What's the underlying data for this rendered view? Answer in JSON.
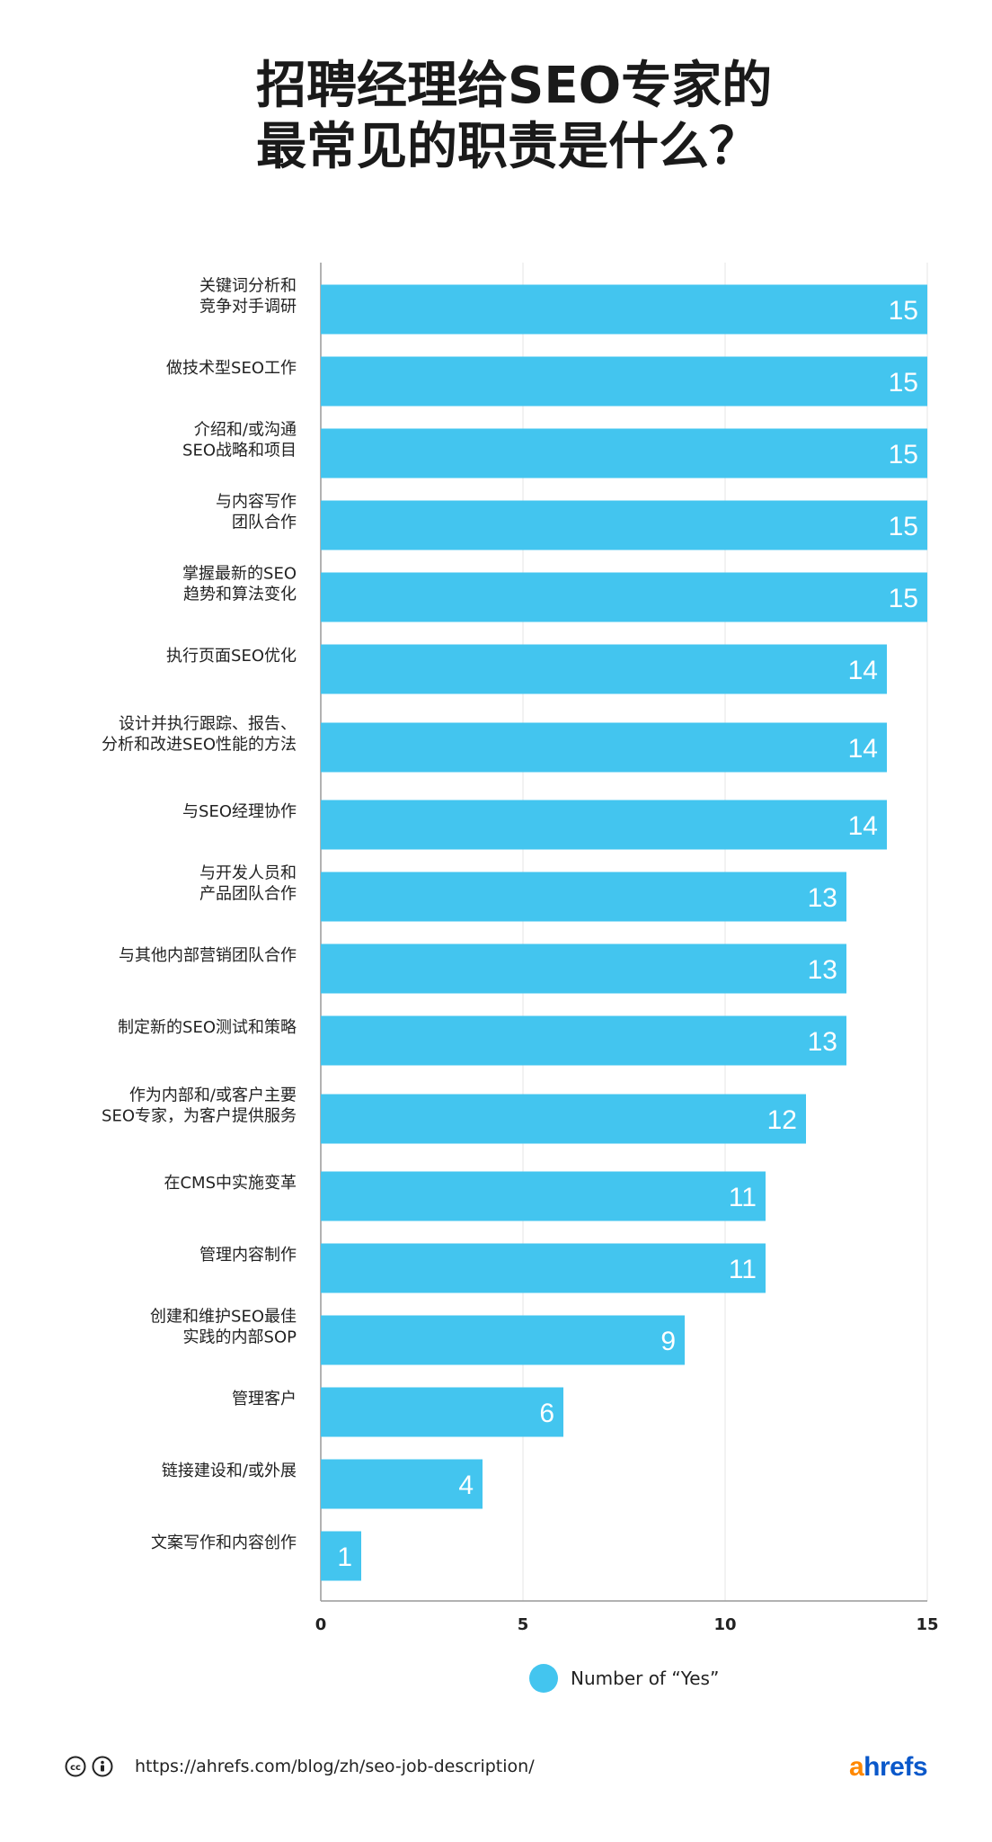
{
  "title": {
    "line1": "招聘经理给SEO专家的",
    "line2": "最常见的职责是什么？"
  },
  "colors": {
    "bar": "#43c5ef",
    "value_text": "#ffffff",
    "grid": "#e6e6e6",
    "axis": "#999999",
    "label": "#222222"
  },
  "chart_data": {
    "type": "bar",
    "orientation": "horizontal",
    "categories": [
      [
        "关键词分析和",
        "竞争对手调研"
      ],
      [
        "做技术型SEO工作"
      ],
      [
        "介绍和/或沟通",
        "SEO战略和项目"
      ],
      [
        "与内容写作",
        "团队合作"
      ],
      [
        "掌握最新的SEO",
        "趋势和算法变化"
      ],
      [
        "执行页面SEO优化"
      ],
      [
        "设计并执行跟踪、报告、",
        "分析和改进SEO性能的方法"
      ],
      [
        "与SEO经理协作"
      ],
      [
        "与开发人员和",
        "产品团队合作"
      ],
      [
        "与其他内部营销团队合作"
      ],
      [
        "制定新的SEO测试和策略"
      ],
      [
        "作为内部和/或客户主要",
        "SEO专家，为客户提供服务"
      ],
      [
        "在CMS中实施变革"
      ],
      [
        "管理内容制作"
      ],
      [
        "创建和维护SEO最佳",
        "实践的内部SOP"
      ],
      [
        "管理客户"
      ],
      [
        "链接建设和/或外展"
      ],
      [
        "文案写作和内容创作"
      ]
    ],
    "series": [
      {
        "name": "Number of “Yes”",
        "values": [
          15,
          15,
          15,
          15,
          15,
          14,
          14,
          14,
          13,
          13,
          13,
          12,
          11,
          11,
          9,
          6,
          4,
          1
        ]
      }
    ],
    "xlim": [
      0,
      15
    ],
    "x_ticks": [
      0,
      5,
      10,
      15
    ],
    "grid": true,
    "legend": "bottom-center",
    "xlabel": "",
    "ylabel": ""
  },
  "legend": {
    "label": "Number of “Yes”"
  },
  "footer": {
    "url": "https://ahrefs.com/blog/zh/seo-job-description/",
    "logo_a": "a",
    "logo_rest": "hrefs"
  },
  "icons": {
    "license_cc": "creative-commons-icon",
    "license_by": "attribution-icon"
  }
}
